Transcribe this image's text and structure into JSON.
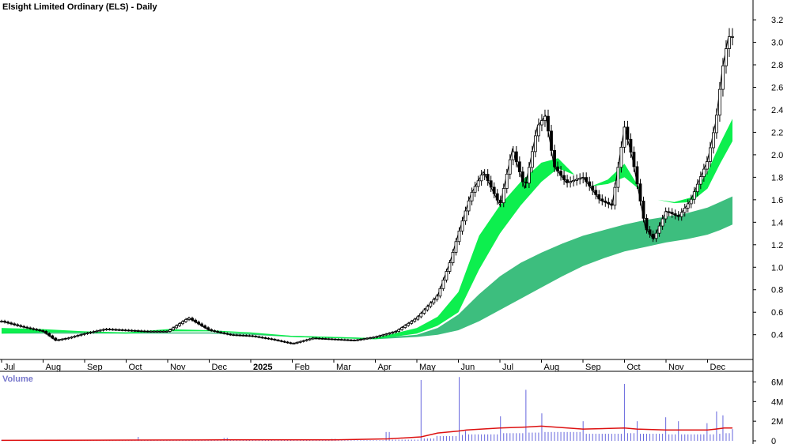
{
  "chart_data": {
    "type": "candlestick",
    "title": "Elsight Limited Ordinary (ELS) - Daily",
    "volume_label": "Volume",
    "price_axis": {
      "ticks": [
        0.4,
        0.6,
        0.8,
        1.0,
        1.2,
        1.4,
        1.6,
        1.8,
        2.0,
        2.2,
        2.4,
        2.6,
        2.8,
        3.0,
        3.2
      ],
      "tick_labels": [
        "0.4",
        "0.6",
        "0.8",
        "1.0",
        "1.2",
        "1.4",
        "1.6",
        "1.8",
        "2.0",
        "2.2",
        "2.4",
        "2.6",
        "2.8",
        "3.0",
        "3.2"
      ],
      "ylim": [
        0.18,
        3.32
      ]
    },
    "volume_axis": {
      "ticks": [
        0,
        2,
        4,
        6
      ],
      "tick_labels": [
        "0",
        "2M",
        "4M",
        "6M"
      ],
      "ylim": [
        0,
        6.6
      ]
    },
    "time_axis": {
      "labels": [
        "Jul",
        "Aug",
        "Sep",
        "Oct",
        "Nov",
        "Dec",
        "2025",
        "Feb",
        "Mar",
        "Apr",
        "May",
        "Jun",
        "Jul",
        "Aug",
        "Sep",
        "Oct",
        "Nov",
        "Dec"
      ],
      "label_months": [
        6,
        7,
        8,
        9,
        10,
        11,
        12,
        13,
        14,
        15,
        16,
        17,
        18,
        19,
        20,
        21,
        22,
        23
      ],
      "bold_labels": [
        "2025"
      ],
      "month_start": 6,
      "month_end": 23.6
    },
    "price_series": {
      "months": [
        6.0,
        6.5,
        7.0,
        7.3,
        7.6,
        8.0,
        8.5,
        9.0,
        9.5,
        10.0,
        10.5,
        11.0,
        11.5,
        12.0,
        12.5,
        13.0,
        13.5,
        14.0,
        14.5,
        15.0,
        15.5,
        16.0,
        16.5,
        16.8,
        17.0,
        17.3,
        17.6,
        18.0,
        18.3,
        18.6,
        18.9,
        19.1,
        19.3,
        19.6,
        20.0,
        20.4,
        20.7,
        21.0,
        21.2,
        21.5,
        21.7,
        22.0,
        22.3,
        22.6,
        23.0,
        23.2,
        23.35,
        23.5,
        23.6
      ],
      "close": [
        0.52,
        0.47,
        0.43,
        0.35,
        0.37,
        0.41,
        0.45,
        0.44,
        0.43,
        0.43,
        0.55,
        0.44,
        0.4,
        0.39,
        0.36,
        0.32,
        0.37,
        0.36,
        0.35,
        0.38,
        0.43,
        0.55,
        0.75,
        1.05,
        1.3,
        1.65,
        1.85,
        1.55,
        2.05,
        1.7,
        2.25,
        2.35,
        1.9,
        1.75,
        1.8,
        1.6,
        1.55,
        2.25,
        1.95,
        1.35,
        1.25,
        1.5,
        1.45,
        1.6,
        1.95,
        2.3,
        2.75,
        3.05,
        3.05
      ]
    },
    "moving_average_ribbons": [
      {
        "color": "#00ee44",
        "months": [
          6.0,
          7.0,
          8.0,
          9.0,
          10.0,
          11.0,
          12.0,
          13.0,
          14.0,
          15.0,
          16.0,
          16.5,
          17.0,
          17.5,
          18.0,
          18.5,
          19.0,
          19.4,
          19.8,
          20.2,
          20.6,
          21.0,
          21.4,
          21.8,
          22.2,
          22.6,
          23.0,
          23.3,
          23.6
        ],
        "upper": [
          0.46,
          0.45,
          0.43,
          0.42,
          0.45,
          0.44,
          0.42,
          0.39,
          0.38,
          0.37,
          0.46,
          0.56,
          0.78,
          1.28,
          1.55,
          1.76,
          1.93,
          1.97,
          1.82,
          1.72,
          1.78,
          1.92,
          1.68,
          1.6,
          1.58,
          1.62,
          1.85,
          2.1,
          2.32
        ],
        "lower": [
          0.41,
          0.42,
          0.42,
          0.41,
          0.43,
          0.43,
          0.41,
          0.38,
          0.37,
          0.36,
          0.41,
          0.48,
          0.6,
          0.98,
          1.3,
          1.55,
          1.76,
          1.88,
          1.82,
          1.72,
          1.74,
          1.8,
          1.68,
          1.6,
          1.57,
          1.58,
          1.7,
          1.92,
          2.12
        ]
      },
      {
        "color": "#33bb77",
        "months": [
          6.0,
          7.0,
          8.0,
          9.0,
          10.0,
          11.0,
          12.0,
          13.0,
          14.0,
          15.0,
          16.0,
          16.5,
          17.0,
          17.5,
          18.0,
          18.5,
          19.0,
          19.5,
          20.0,
          20.5,
          21.0,
          21.5,
          22.0,
          22.5,
          23.0,
          23.3,
          23.6
        ],
        "upper": [
          0.42,
          0.42,
          0.42,
          0.42,
          0.42,
          0.42,
          0.41,
          0.39,
          0.38,
          0.37,
          0.4,
          0.46,
          0.58,
          0.76,
          0.92,
          1.04,
          1.13,
          1.21,
          1.28,
          1.33,
          1.38,
          1.42,
          1.45,
          1.48,
          1.53,
          1.58,
          1.63
        ],
        "lower": [
          0.41,
          0.41,
          0.41,
          0.41,
          0.41,
          0.41,
          0.4,
          0.38,
          0.37,
          0.36,
          0.38,
          0.4,
          0.44,
          0.52,
          0.62,
          0.72,
          0.82,
          0.92,
          1.01,
          1.08,
          1.14,
          1.18,
          1.22,
          1.25,
          1.29,
          1.33,
          1.38
        ]
      }
    ],
    "volume_series": {
      "months": [
        6.0,
        9.3,
        11.4,
        14.0,
        15.3,
        16.1,
        16.5,
        17.0,
        17.2,
        18.0,
        18.6,
        19.0,
        20.0,
        21.0,
        21.3,
        22.0,
        22.3,
        23.0,
        23.2,
        23.4,
        23.6
      ],
      "values": [
        0.1,
        0.4,
        0.3,
        0.2,
        0.9,
        6.2,
        0.5,
        6.5,
        1.0,
        2.5,
        5.2,
        2.8,
        2.0,
        5.8,
        2.0,
        2.4,
        2.0,
        1.8,
        3.0,
        2.6,
        1.2
      ],
      "ma_values": [
        0.05,
        0.08,
        0.1,
        0.1,
        0.2,
        0.4,
        0.8,
        1.0,
        1.1,
        1.3,
        1.4,
        1.5,
        1.2,
        1.3,
        1.2,
        1.1,
        1.1,
        1.1,
        1.2,
        1.3,
        1.3
      ]
    }
  }
}
